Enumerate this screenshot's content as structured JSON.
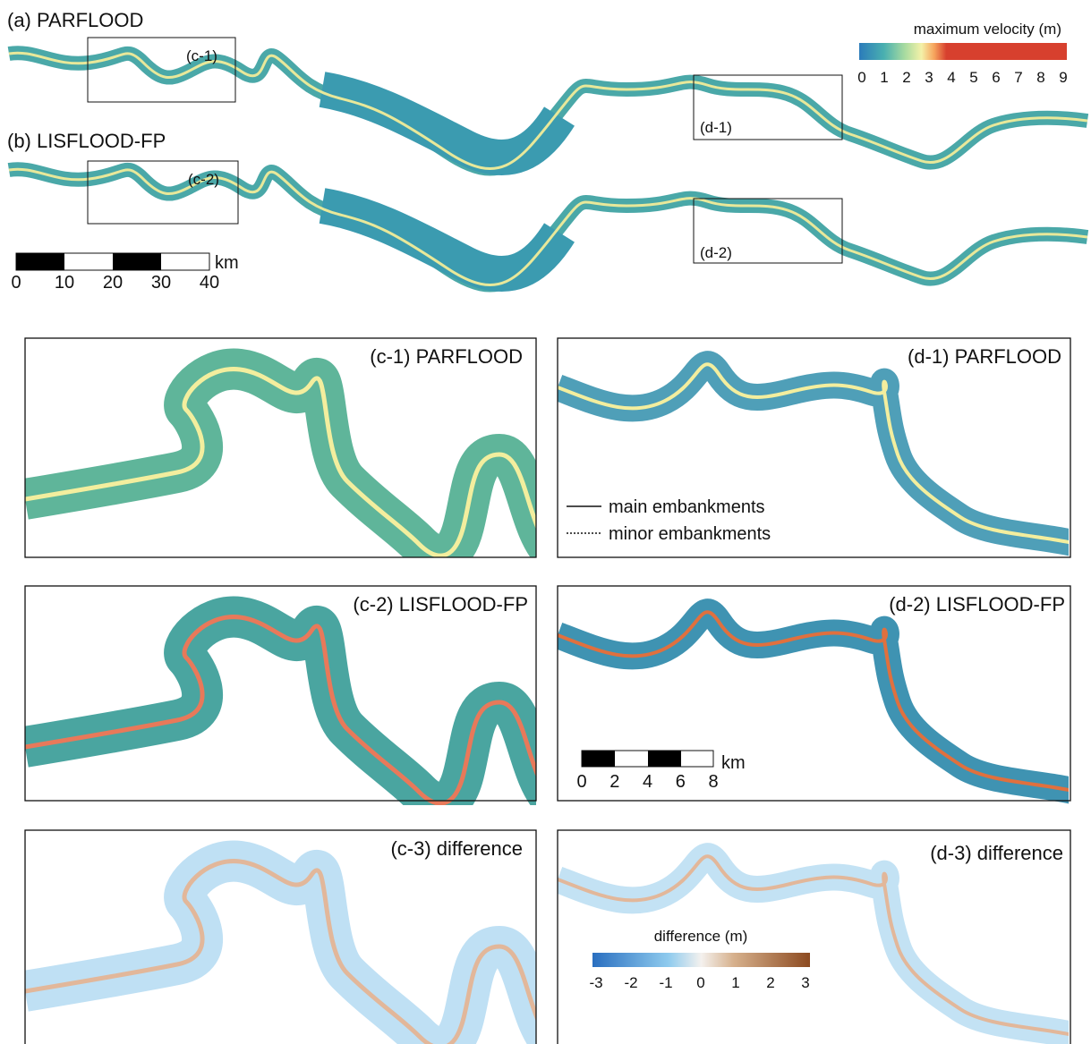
{
  "overview": {
    "panels": [
      {
        "label": "(a) PARFLOOD",
        "insets": [
          "(c-1)",
          "(d-1)"
        ]
      },
      {
        "label": "(b) LISFLOOD-FP",
        "insets": [
          "(c-2)",
          "(d-2)"
        ]
      }
    ],
    "scale_bar": {
      "ticks": [
        0,
        10,
        20,
        30,
        40
      ],
      "unit": "km"
    }
  },
  "velocity_legend": {
    "title": "maximum velocity (m)",
    "ticks": [
      0,
      1,
      2,
      3,
      4,
      5,
      6,
      7,
      8,
      9
    ]
  },
  "panels": [
    {
      "title": "(c-1) PARFLOOD"
    },
    {
      "title": "(d-1) PARFLOOD"
    },
    {
      "title": "(c-2) LISFLOOD-FP"
    },
    {
      "title": "(d-2) LISFLOOD-FP"
    },
    {
      "title": "(c-3) difference"
    },
    {
      "title": "(d-3) difference"
    }
  ],
  "embankment_legend": {
    "main": "main embankments",
    "minor": "minor embankments"
  },
  "detail_scale_bar": {
    "ticks": [
      0,
      2,
      4,
      6,
      8
    ],
    "unit": "km"
  },
  "difference_legend": {
    "title": "difference (m)",
    "ticks": [
      -3,
      -2,
      -1,
      0,
      1,
      2,
      3
    ]
  }
}
